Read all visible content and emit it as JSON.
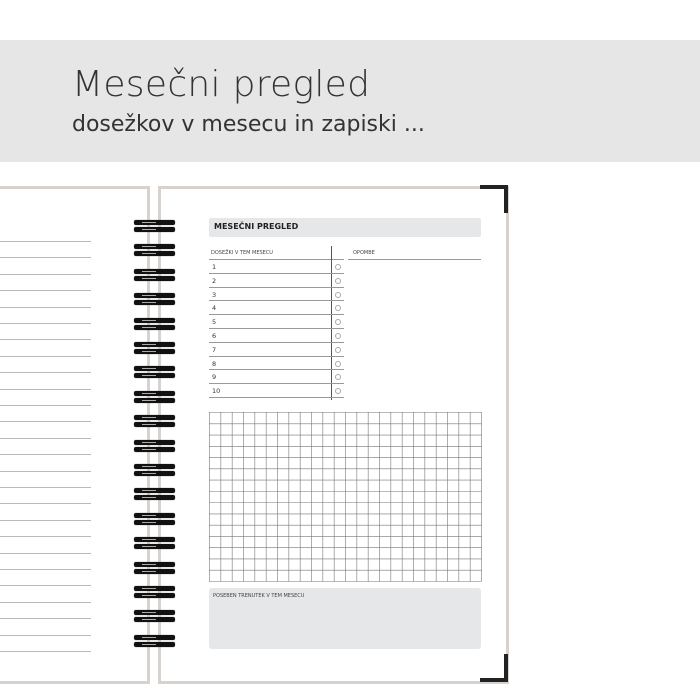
{
  "header": {
    "title": "Mesečni pregled",
    "subtitle": "dosežkov v mesecu in zapiski ..."
  },
  "planner": {
    "section_title": "MESEČNI PREGLED",
    "achievements_label": "DOSEŽKI V TEM MESECU",
    "notes_label": "OPOMBE",
    "rows": [
      "1",
      "2",
      "3",
      "4",
      "5",
      "6",
      "7",
      "8",
      "9",
      "10"
    ],
    "special_moment_label": "POSEBEN TRENUTEK V TEM MESECU"
  },
  "colors": {
    "band": "#e6e6e6",
    "page_border": "#d8d2cf",
    "spiral": "#111111"
  }
}
